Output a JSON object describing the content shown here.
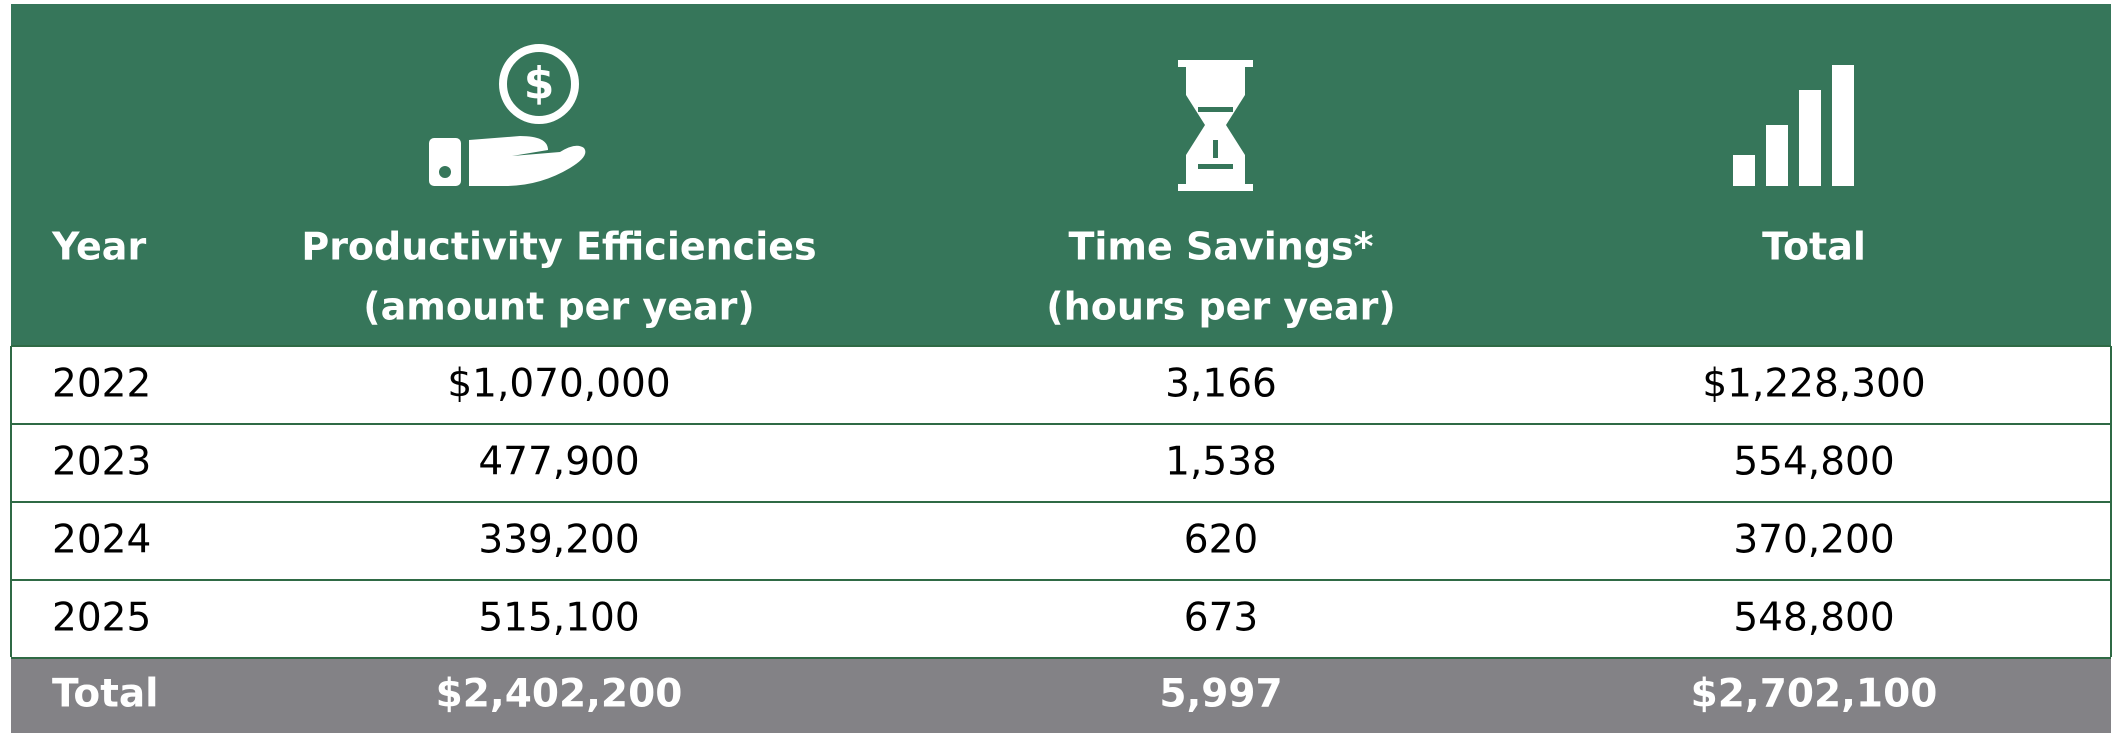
{
  "table": {
    "columns": [
      [
        "Year"
      ],
      [
        "Productivity Efficiencies",
        "(amount per year)"
      ],
      [
        "Time Savings*",
        "(hours per year)"
      ],
      [
        "Total"
      ]
    ],
    "rows": [
      [
        "2022",
        "$1,070,000",
        "3,166",
        "$1,228,300"
      ],
      [
        "2023",
        "477,900",
        "1,538",
        "554,800"
      ],
      [
        "2024",
        "339,200",
        "620",
        "370,200"
      ],
      [
        "2025",
        "515,100",
        "673",
        "548,800"
      ]
    ],
    "total": [
      "Total",
      "$2,402,200",
      "5,997",
      "$2,702,100"
    ]
  }
}
